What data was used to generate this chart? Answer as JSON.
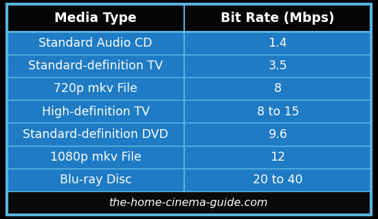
{
  "col1_header": "Media Type",
  "col2_header": "Bit Rate (Mbps)",
  "rows": [
    [
      "Standard Audio CD",
      "1.4"
    ],
    [
      "Standard-definition TV",
      "3.5"
    ],
    [
      "720p mkv File",
      "8"
    ],
    [
      "High-definition TV",
      "8 to 15"
    ],
    [
      "Standard-definition DVD",
      "9.6"
    ],
    [
      "1080p mkv File",
      "12"
    ],
    [
      "Blu-ray Disc",
      "20 to 40"
    ]
  ],
  "footer": "the-home-cinema-guide.com",
  "fig_bg": "#000000",
  "header_bg": "#050505",
  "row_bg": "#1e7bc4",
  "divider_color": "#5ab4e0",
  "footer_bg": "#0a0a0a",
  "text_color": "#ffffff",
  "outer_border_color": "#5ab4e0",
  "outer_border_lw": 3.0,
  "header_font_size": 13.5,
  "row_font_size": 12.5,
  "footer_font_size": 11.5,
  "col_split": 0.488
}
